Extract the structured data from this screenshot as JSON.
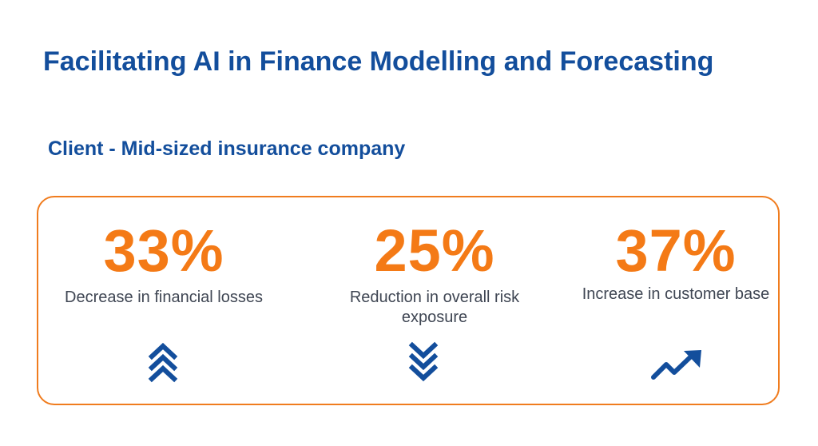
{
  "header": {
    "title": "Facilitating AI in Finance Modelling and Forecasting",
    "subtitle": "Client - Mid-sized insurance company"
  },
  "stats": [
    {
      "value": "33%",
      "label": "Decrease in financial losses",
      "icon": "double-chevron-up-icon"
    },
    {
      "value": "25%",
      "label": "Reduction in overall risk exposure",
      "icon": "double-chevron-down-icon"
    },
    {
      "value": "37%",
      "label": "Increase in customer base",
      "icon": "trend-up-icon"
    }
  ],
  "colors": {
    "title": "#134e9c",
    "accent_orange": "#f47a16",
    "border_orange": "#f07c1e",
    "label_gray": "#3f4653",
    "icon_blue": "#134e9c"
  }
}
